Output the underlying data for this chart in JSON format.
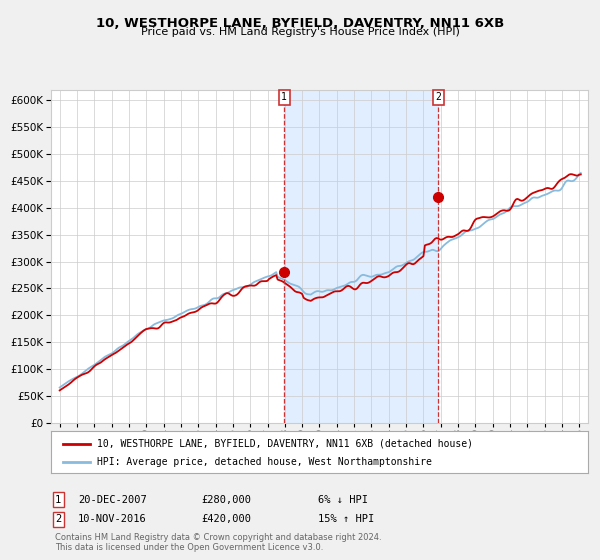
{
  "title": "10, WESTHORPE LANE, BYFIELD, DAVENTRY, NN11 6XB",
  "subtitle": "Price paid vs. HM Land Registry's House Price Index (HPI)",
  "legend_line1": "10, WESTHORPE LANE, BYFIELD, DAVENTRY, NN11 6XB (detached house)",
  "legend_line2": "HPI: Average price, detached house, West Northamptonshire",
  "footnote1": "Contains HM Land Registry data © Crown copyright and database right 2024.",
  "footnote2": "This data is licensed under the Open Government Licence v3.0.",
  "transaction1_date": "20-DEC-2007",
  "transaction1_price": "£280,000",
  "transaction1_hpi": "6% ↓ HPI",
  "transaction2_date": "10-NOV-2016",
  "transaction2_price": "£420,000",
  "transaction2_hpi": "15% ↑ HPI",
  "ylim": [
    0,
    620000
  ],
  "hpi_color": "#88bbdd",
  "price_color": "#cc0000",
  "shade_color": "#e0eeff",
  "vline_color": "#cc3333",
  "grid_color": "#cccccc",
  "bg_color": "#f0f0f0",
  "plot_bg_color": "#ffffff",
  "transaction1_x": 2007.96,
  "transaction1_y": 280000,
  "transaction2_x": 2016.86,
  "transaction2_y": 420000,
  "xmin": 1994.5,
  "xmax": 2025.5
}
